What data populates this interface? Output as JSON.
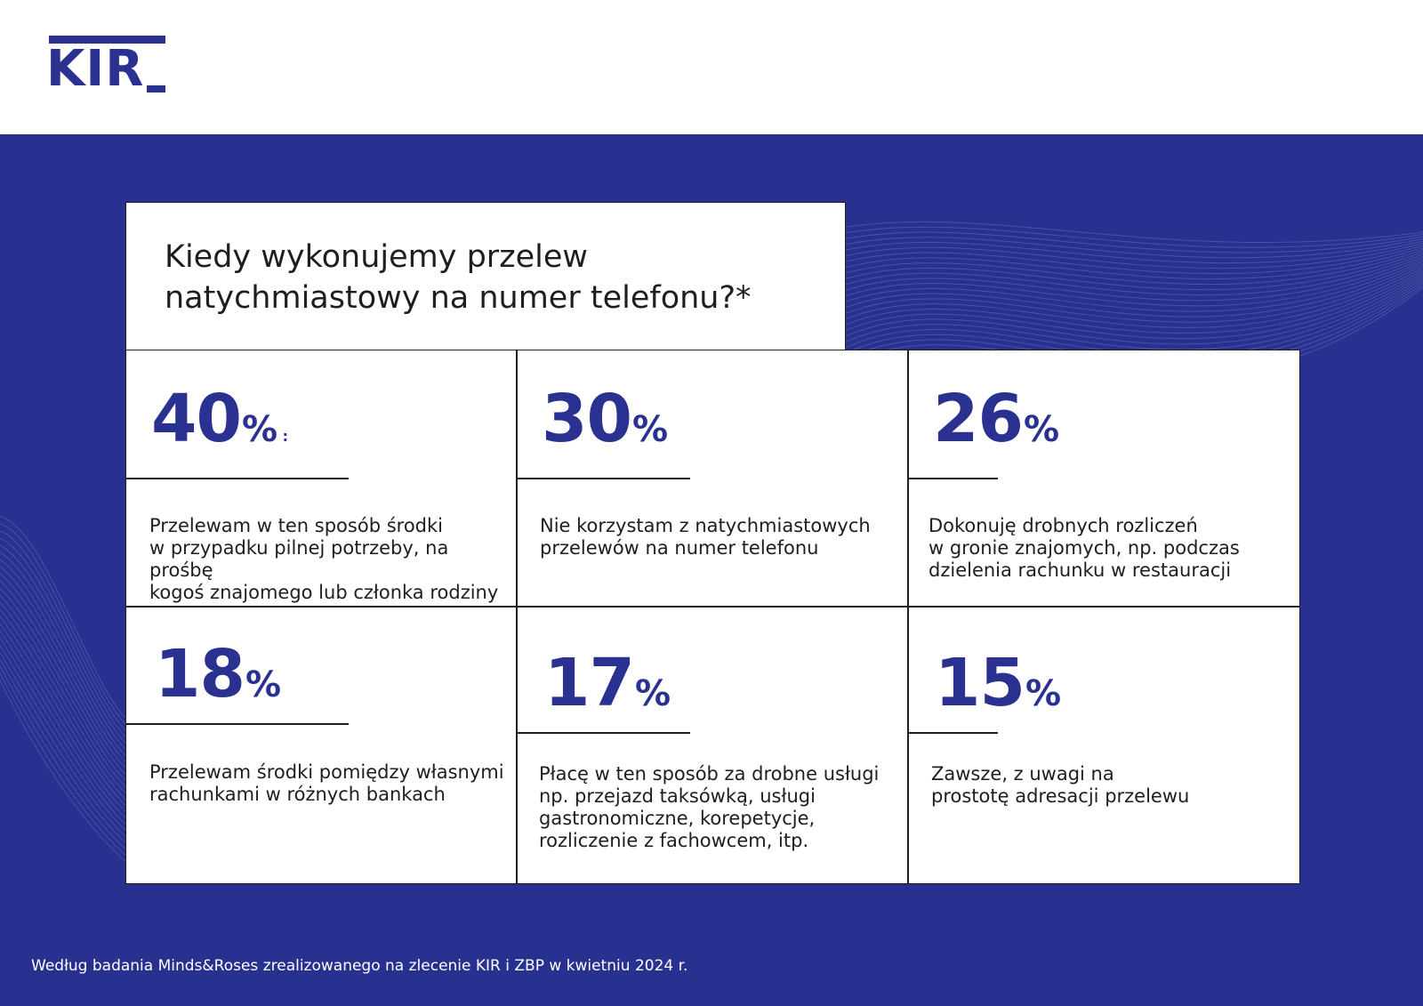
{
  "brand": {
    "logo_text": "KIR",
    "color": "#2a3190"
  },
  "colors": {
    "panel_background": "#283190",
    "accent": "#2a3190",
    "text": "#1e1e1e",
    "card_background": "#ffffff"
  },
  "title": "Kiedy wykonujemy przelew\nnatychmiastowy na numer telefonu?*",
  "stats": [
    {
      "value": "40",
      "unit": "%",
      "description": "Przelewam w ten sposób środki\nw przypadku pilnej potrzeby, na prośbę\nkogoś znajomego lub członka rodziny"
    },
    {
      "value": "30",
      "unit": "%",
      "description": "Nie korzystam z natychmiastowych\nprzelewów na numer telefonu"
    },
    {
      "value": "26",
      "unit": "%",
      "description": "Dokonuję drobnych rozliczeń\nw gronie znajomych, np. podczas\ndzielenia rachunku w restauracji"
    },
    {
      "value": "18",
      "unit": "%",
      "description": "Przelewam środki pomiędzy własnymi\nrachunkami w różnych bankach"
    },
    {
      "value": "17",
      "unit": "%",
      "description": "Płacę w ten sposób za drobne usługi\nnp. przejazd taksówką, usługi\ngastronomiczne, korepetycje,\nrozliczenie z fachowcem, itp."
    },
    {
      "value": "15",
      "unit": "%",
      "description": "Zawsze, z uwagi na\nprostotę adresacji przelewu"
    }
  ],
  "footnote": "Według badania Minds&Roses zrealizowanego na zlecenie KIR i ZBP w kwietniu 2024 r."
}
